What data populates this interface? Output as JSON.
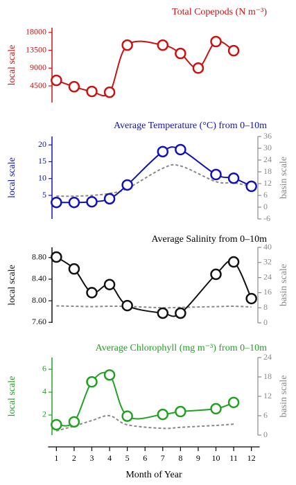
{
  "chart_data": [
    {
      "type": "line",
      "title": "Total Copepods (N m⁻³)",
      "ylabel": "local scale",
      "ylim": [
        300,
        19200
      ],
      "yticks": [
        4500,
        9000,
        13500,
        18000
      ],
      "xlim": [
        0.4,
        12.6
      ],
      "series": [
        {
          "color": "#cc1111",
          "x": [
            1,
            2,
            3,
            4,
            5,
            7,
            8,
            9,
            10,
            11
          ],
          "values": [
            5900,
            4300,
            3100,
            2900,
            14800,
            14800,
            12700,
            9000,
            15700,
            13400
          ]
        }
      ]
    },
    {
      "type": "line",
      "title": "Average Temperature (°C) from 0–10m",
      "ylabel": "local scale",
      "y2label": "basin scale",
      "ylim": [
        -2,
        22.5
      ],
      "yticks": [
        5,
        10,
        15,
        20
      ],
      "y2lim": [
        -6,
        36
      ],
      "y2ticks": [
        -6,
        0,
        6,
        12,
        18,
        24,
        30,
        36
      ],
      "xlim": [
        0.4,
        12.6
      ],
      "series": [
        {
          "color": "#1111bb",
          "x": [
            1,
            2,
            3,
            4,
            5,
            7,
            8,
            10,
            11,
            12
          ],
          "values": [
            2.9,
            2.9,
            3.1,
            4.0,
            8.1,
            18.0,
            18.6,
            11.2,
            10.1,
            7.7
          ]
        },
        {
          "color": "#888888",
          "axis": "y2",
          "style": "dashed",
          "x": [
            1,
            2,
            3,
            4,
            5,
            7,
            8,
            10,
            11,
            12
          ],
          "values": [
            5.6,
            5.6,
            6,
            7,
            9.5,
            19.8,
            21,
            13,
            12.4,
            10.6
          ]
        }
      ]
    },
    {
      "type": "line",
      "title": "Average Salinity from 0–10m",
      "ylabel": "local scale",
      "y2label": "basin scale",
      "ylim": [
        7.59,
        8.99
      ],
      "yticks": [
        {
          "value": 7.6,
          "label": "7.60"
        },
        {
          "value": 8.0,
          "label": "8.00"
        },
        {
          "value": 8.4,
          "label": "8.40"
        },
        {
          "value": 8.8,
          "label": "8.80"
        }
      ],
      "y2lim": [
        0,
        40
      ],
      "y2ticks": [
        0,
        8,
        16,
        24,
        32,
        40
      ],
      "xlim": [
        0.4,
        12.6
      ],
      "series": [
        {
          "color": "#111111",
          "x": [
            1,
            2,
            3,
            4,
            5,
            7,
            8,
            10,
            11,
            12
          ],
          "values": [
            8.81,
            8.59,
            8.15,
            8.3,
            7.91,
            7.77,
            7.77,
            8.49,
            8.72,
            8.04
          ]
        },
        {
          "color": "#888888",
          "axis": "y2",
          "style": "dashed",
          "x": [
            1,
            2,
            3,
            4,
            5,
            7,
            8,
            10,
            11,
            12
          ],
          "values": [
            9,
            8.8,
            8.6,
            8.8,
            8.7,
            8,
            8.2,
            8.6,
            8.8,
            8.4
          ]
        }
      ]
    },
    {
      "type": "line",
      "title": "Average Chlorophyll (mg m⁻³) from 0–10m",
      "ylabel": "local scale",
      "y2label": "basin scale",
      "ylim": [
        0.24,
        7.03
      ],
      "yticks": [
        2,
        4,
        6
      ],
      "y2lim": [
        0,
        24
      ],
      "y2ticks": [
        0,
        6,
        12,
        18,
        24
      ],
      "xlim": [
        0.4,
        12.6
      ],
      "xticks": [
        1,
        2,
        3,
        4,
        5,
        6,
        7,
        8,
        9,
        10,
        11,
        12
      ],
      "xlabel": "Month of Year",
      "series": [
        {
          "color": "#22a022",
          "x": [
            1,
            2,
            3,
            4,
            5,
            7,
            8,
            10,
            11
          ],
          "values": [
            1.15,
            1.4,
            4.9,
            5.5,
            1.9,
            2.05,
            2.3,
            2.55,
            3.1
          ]
        },
        {
          "color": "#888888",
          "axis": "y2",
          "style": "dashed",
          "x": [
            1,
            2,
            3,
            4,
            5,
            7,
            8,
            10,
            11
          ],
          "values": [
            1.3,
            2.8,
            4.5,
            6,
            3.2,
            2.1,
            2.4,
            3,
            3.4
          ]
        }
      ]
    }
  ]
}
